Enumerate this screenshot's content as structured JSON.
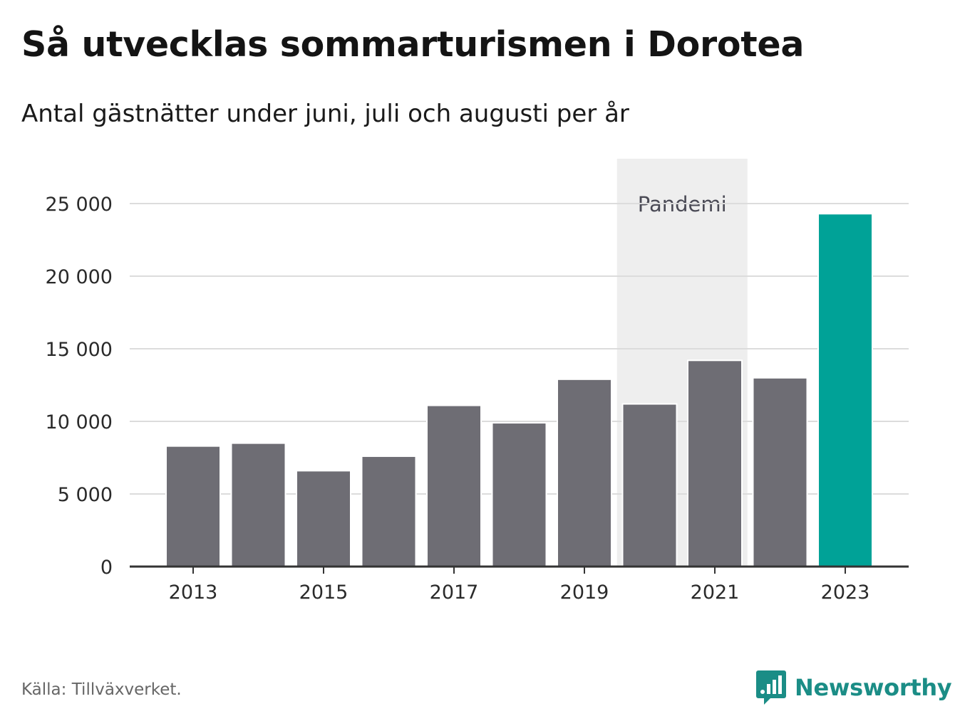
{
  "header": {
    "title": "Så utvecklas sommarturismen i Dorotea",
    "subtitle": "Antal gästnätter under juni, juli och augusti per år"
  },
  "footer": {
    "source": "Källa: Tillväxverket.",
    "brand": "Newsworthy",
    "brand_icon": "bar-chart-speech-bubble-icon"
  },
  "colors": {
    "bar": "#6e6d74",
    "highlight": "#00a297",
    "pandemic_band": "#eeeeee",
    "grid": "#dcdcdc",
    "axis": "#333333",
    "brand": "#1b8d86"
  },
  "chart_data": {
    "type": "bar",
    "categories": [
      "2013",
      "2014",
      "2015",
      "2016",
      "2017",
      "2018",
      "2019",
      "2020",
      "2021",
      "2022",
      "2023"
    ],
    "values": [
      8300,
      8500,
      6600,
      7600,
      11100,
      9900,
      12900,
      11200,
      14200,
      13000,
      24300
    ],
    "highlight_category": "2023",
    "x_tick_labels": [
      "2013",
      "2015",
      "2017",
      "2019",
      "2021",
      "2023"
    ],
    "ylim": [
      0,
      27500
    ],
    "y_ticks": [
      0,
      5000,
      10000,
      15000,
      20000,
      25000
    ],
    "y_tick_labels": [
      "0",
      "5 000",
      "10 000",
      "15 000",
      "20 000",
      "25 000"
    ],
    "grid": true,
    "annotation": {
      "label": "Pandemi",
      "from": "2020",
      "to": "2021"
    }
  }
}
